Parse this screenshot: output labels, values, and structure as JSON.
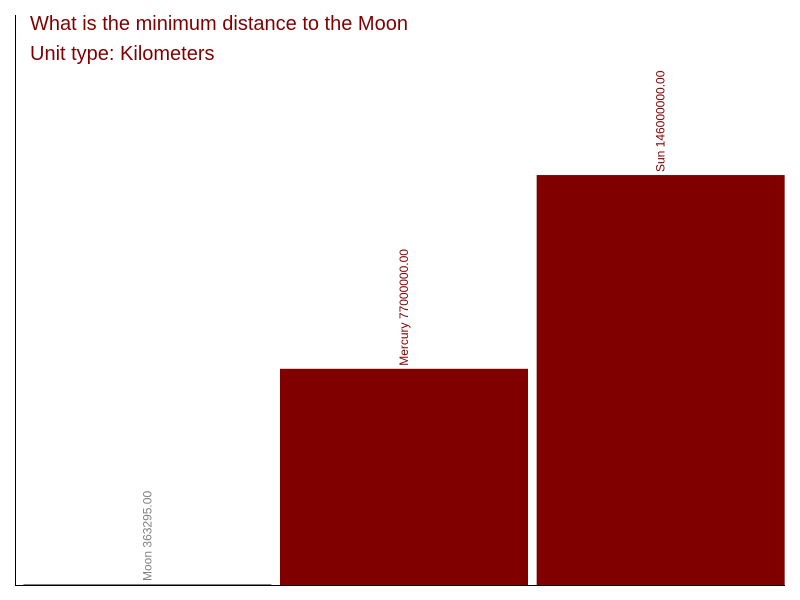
{
  "chart_data": {
    "type": "bar",
    "title": "What is the minimum distance to the Moon",
    "subtitle": "Unit type: Kilometers",
    "categories": [
      "Moon",
      "Mercury",
      "Sun"
    ],
    "values": [
      363295,
      77000000,
      146000000
    ],
    "value_labels": [
      "363295.00",
      "77000000.00",
      "146000000.00"
    ],
    "colors": [
      "#808080",
      "#800000",
      "#800000"
    ],
    "ylim": [
      0,
      203000000
    ]
  }
}
